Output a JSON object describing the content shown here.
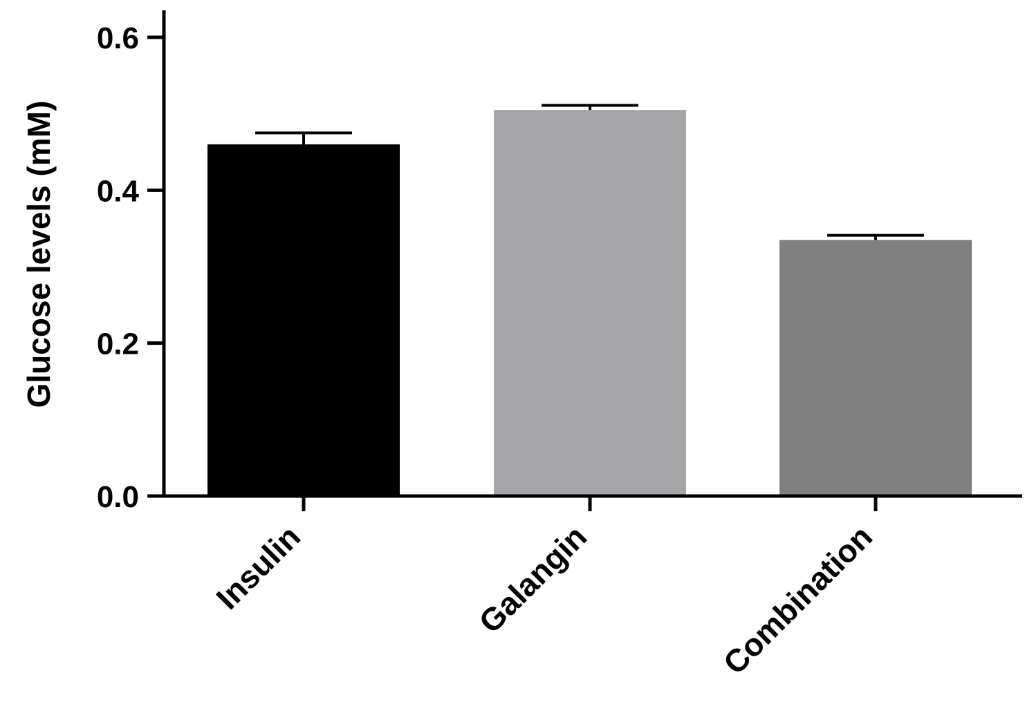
{
  "chart_data": {
    "type": "bar",
    "title": "",
    "xlabel": "",
    "ylabel": "Glucose levels (mM)",
    "ylim": [
      0,
      0.6
    ],
    "yticks": [
      0.0,
      0.2,
      0.4,
      0.6
    ],
    "ytick_labels": [
      "0.0",
      "0.2",
      "0.4",
      "0.6"
    ],
    "categories": [
      "Insulin",
      "Galangin",
      "Combination"
    ],
    "values": [
      0.46,
      0.505,
      0.335
    ],
    "errors": [
      0.015,
      0.006,
      0.006
    ],
    "bar_colors": [
      "#000000",
      "#a5a5a8",
      "#808080"
    ],
    "grid": false,
    "legend": "none"
  }
}
